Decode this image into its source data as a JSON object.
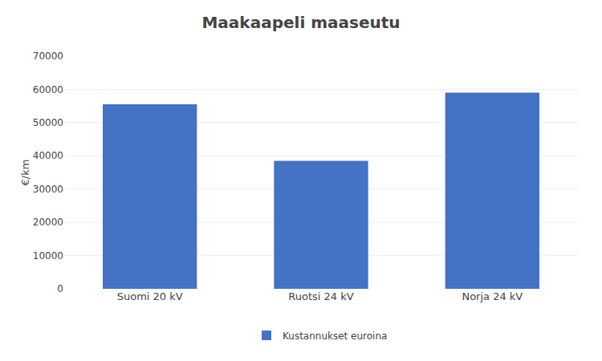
{
  "chart_data": {
    "type": "bar",
    "title": "Maakaapeli maaseutu",
    "categories": [
      "Suomi 20 kV",
      "Ruotsi 24 kV",
      "Norja 24 kV"
    ],
    "series": [
      {
        "name": "Kustannukset euroina",
        "color": "#4472C4",
        "values": [
          55500,
          38500,
          59000
        ]
      }
    ],
    "ylabel": "€/km",
    "ylim": [
      0,
      70000
    ],
    "yticks": [
      0,
      10000,
      20000,
      30000,
      40000,
      50000,
      60000,
      70000
    ],
    "grid": true,
    "legend": "bottom"
  }
}
